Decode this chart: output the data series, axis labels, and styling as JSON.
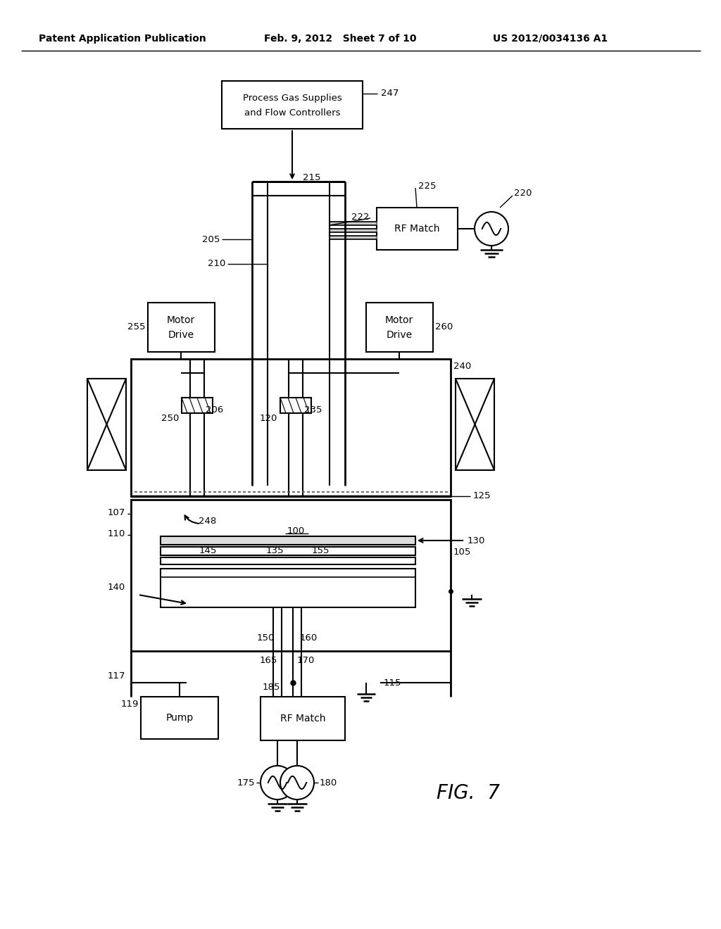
{
  "bg_color": "#ffffff",
  "header_left": "Patent Application Publication",
  "header_mid": "Feb. 9, 2012   Sheet 7 of 10",
  "header_right": "US 2012/0034136 A1",
  "fig_label": "FIG.  7"
}
